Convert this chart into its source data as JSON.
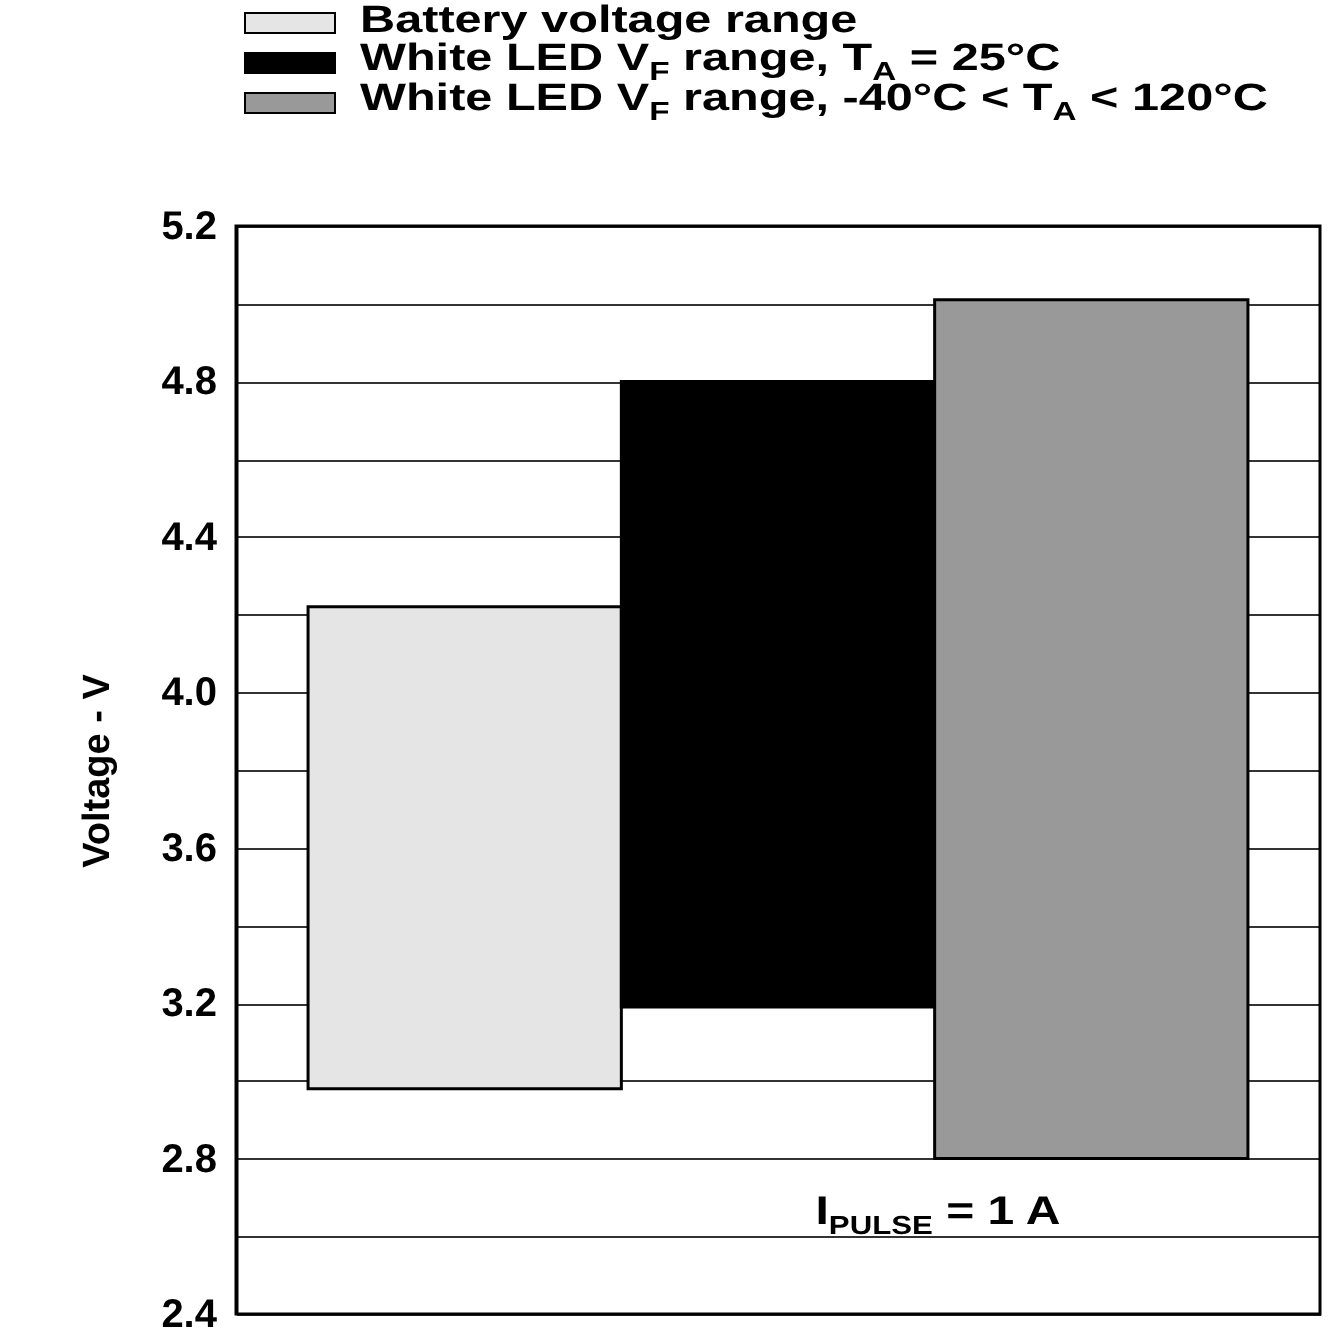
{
  "chart_data": {
    "type": "bar",
    "categories": [
      null,
      null,
      null
    ],
    "series": [
      {
        "name": "Battery voltage range",
        "color": "#e5e5e5",
        "values": [
          1.24,
          null,
          null
        ],
        "base": [
          2.98,
          null,
          null
        ]
      },
      {
        "name": "White LED V$_{F}$ range, T$_{A}$ = 25°C",
        "color": "#000000",
        "values": [
          null,
          1.61,
          null
        ],
        "base": [
          null,
          3.19,
          null
        ]
      },
      {
        "name": "White LED V$_{F}$ range, -40°C < T$_{A}$ < 120°C",
        "color": "#999999",
        "values": [
          null,
          null,
          2.21
        ],
        "base": [
          null,
          null,
          2.8
        ]
      }
    ],
    "ylabel": "Voltage - V",
    "ylim": [
      2.4,
      5.2
    ],
    "yticks": [
      2.4,
      {
        "value": 2.6,
        "label": null
      },
      2.8,
      {
        "value": 3,
        "label": null
      },
      3.2,
      {
        "value": 3.4,
        "label": null
      },
      3.6,
      {
        "value": 3.8,
        "label": null
      },
      {
        "value": 4,
        "label": "4.0"
      },
      {
        "value": 4.2,
        "label": null
      },
      4.4,
      {
        "value": 4.6,
        "label": null
      },
      4.8,
      {
        "value": 5,
        "label": null
      },
      5.2
    ],
    "annotations": [
      "I$_{PULSE}$ = 1 A"
    ],
    "grid": "y",
    "legend": "top"
  }
}
